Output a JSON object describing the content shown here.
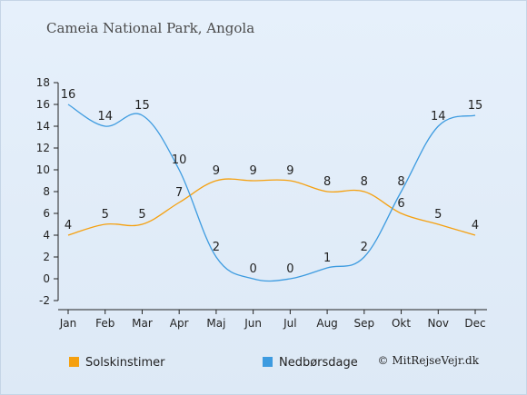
{
  "title": "Cameia National Park, Angola",
  "copyright": "© MitRejseVejr.dk",
  "chart_data": {
    "type": "line",
    "categories": [
      "Jan",
      "Feb",
      "Mar",
      "Apr",
      "Maj",
      "Jun",
      "Jul",
      "Aug",
      "Sep",
      "Okt",
      "Nov",
      "Dec"
    ],
    "series": [
      {
        "name": "Solskinstimer",
        "color": "#f5a00f",
        "values": [
          4,
          5,
          5,
          7,
          9,
          9,
          9,
          8,
          8,
          6,
          5,
          4
        ]
      },
      {
        "name": "Nedbørsdage",
        "color": "#3d9be0",
        "values": [
          16,
          14,
          15,
          10,
          2,
          0,
          0,
          1,
          2,
          8,
          14,
          15
        ]
      }
    ],
    "ylim": [
      -2,
      18
    ],
    "yticks": [
      -2,
      0,
      2,
      4,
      6,
      8,
      10,
      12,
      14,
      16,
      18
    ],
    "grid": false,
    "legend_position": "bottom-left"
  }
}
